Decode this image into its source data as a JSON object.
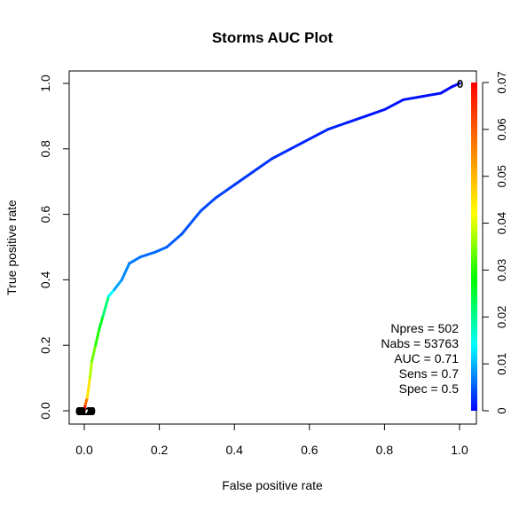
{
  "chart_data": {
    "type": "line",
    "title": "Storms AUC Plot",
    "xlabel": "False positive rate",
    "ylabel": "True positive rate",
    "xlim": [
      0,
      1
    ],
    "ylim": [
      0,
      1
    ],
    "x_ticks": [
      0,
      0.2,
      0.4,
      0.6,
      0.8,
      1
    ],
    "x_tick_labels": [
      "0.0",
      "0.2",
      "0.4",
      "0.6",
      "0.8",
      "1.0"
    ],
    "y_ticks": [
      0,
      0.2,
      0.4,
      0.6,
      0.8,
      1
    ],
    "y_tick_labels": [
      "0.0",
      "0.2",
      "0.4",
      "0.6",
      "0.8",
      "1.0"
    ],
    "grid": false,
    "colorbar": {
      "range": [
        0,
        0.07
      ],
      "ticks": [
        0,
        0.01,
        0.02,
        0.03,
        0.04,
        0.05,
        0.06,
        0.07
      ],
      "tick_labels": [
        "0",
        "0.01",
        "0.02",
        "0.03",
        "0.04",
        "0.05",
        "0.06",
        "0.07"
      ],
      "colors": [
        "#0000ff",
        "#00ffff",
        "#00ff00",
        "#ffff00",
        "#ff8000",
        "#ff0000"
      ]
    },
    "roc_curve": [
      {
        "x": 0.0,
        "y": 0.0,
        "t": 0.07
      },
      {
        "x": 0.003,
        "y": 0.02,
        "t": 0.066
      },
      {
        "x": 0.008,
        "y": 0.04,
        "t": 0.05
      },
      {
        "x": 0.015,
        "y": 0.1,
        "t": 0.04
      },
      {
        "x": 0.02,
        "y": 0.15,
        "t": 0.036
      },
      {
        "x": 0.03,
        "y": 0.2,
        "t": 0.032
      },
      {
        "x": 0.04,
        "y": 0.25,
        "t": 0.028
      },
      {
        "x": 0.05,
        "y": 0.29,
        "t": 0.025
      },
      {
        "x": 0.065,
        "y": 0.35,
        "t": 0.018
      },
      {
        "x": 0.08,
        "y": 0.37,
        "t": 0.01
      },
      {
        "x": 0.1,
        "y": 0.4,
        "t": 0.008
      },
      {
        "x": 0.12,
        "y": 0.45,
        "t": 0.007
      },
      {
        "x": 0.15,
        "y": 0.47,
        "t": 0.006
      },
      {
        "x": 0.19,
        "y": 0.485,
        "t": 0.006
      },
      {
        "x": 0.22,
        "y": 0.5,
        "t": 0.005
      },
      {
        "x": 0.26,
        "y": 0.54,
        "t": 0.005
      },
      {
        "x": 0.31,
        "y": 0.61,
        "t": 0.004
      },
      {
        "x": 0.35,
        "y": 0.65,
        "t": 0.004
      },
      {
        "x": 0.4,
        "y": 0.69,
        "t": 0.003
      },
      {
        "x": 0.45,
        "y": 0.73,
        "t": 0.003
      },
      {
        "x": 0.5,
        "y": 0.77,
        "t": 0.003
      },
      {
        "x": 0.55,
        "y": 0.8,
        "t": 0.002
      },
      {
        "x": 0.6,
        "y": 0.83,
        "t": 0.002
      },
      {
        "x": 0.65,
        "y": 0.86,
        "t": 0.002
      },
      {
        "x": 0.7,
        "y": 0.88,
        "t": 0.002
      },
      {
        "x": 0.75,
        "y": 0.9,
        "t": 0.001
      },
      {
        "x": 0.8,
        "y": 0.92,
        "t": 0.001
      },
      {
        "x": 0.85,
        "y": 0.95,
        "t": 0.001
      },
      {
        "x": 0.9,
        "y": 0.96,
        "t": 0.001
      },
      {
        "x": 0.95,
        "y": 0.97,
        "t": 0.0005
      },
      {
        "x": 0.98,
        "y": 0.99,
        "t": 0.0002
      },
      {
        "x": 1.0,
        "y": 1.0,
        "t": 0.0
      }
    ],
    "markers": [
      {
        "x": 0.0,
        "y": 0.0,
        "label": "0.1"
      },
      {
        "x": 0.0,
        "y": 0.0,
        "label": "0.2"
      },
      {
        "x": 0.0,
        "y": 0.0,
        "label": "0.3"
      },
      {
        "x": 0.0,
        "y": 0.0,
        "label": "0.4"
      },
      {
        "x": 0.0,
        "y": 0.0,
        "label": "0.5"
      },
      {
        "x": 0.0,
        "y": 0.0,
        "label": "0.6"
      },
      {
        "x": 0.0,
        "y": 0.0,
        "label": "0.7"
      },
      {
        "x": 0.0,
        "y": 0.0,
        "label": "0.8"
      },
      {
        "x": 0.0,
        "y": 0.0,
        "label": "0.9"
      },
      {
        "x": 1.0,
        "y": 1.0,
        "label": "0"
      }
    ],
    "stats": [
      "Npres = 502",
      "Nabs = 53763",
      "AUC = 0.71",
      "Sens = 0.7",
      "Spec = 0.5"
    ]
  }
}
